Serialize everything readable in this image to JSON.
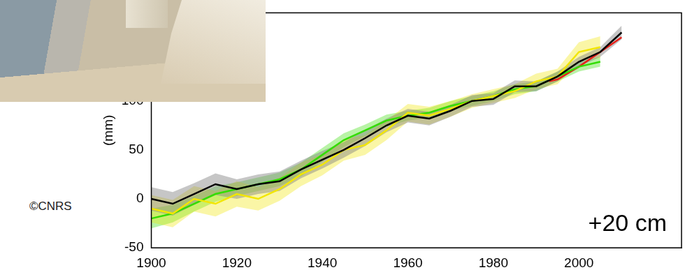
{
  "chart_data": {
    "type": "line",
    "y_label": "(mm)",
    "credit": "©CNRS",
    "annotation": "+20 cm",
    "xlim": [
      1900,
      2024
    ],
    "xticks": [
      1900,
      1920,
      1940,
      1960,
      1980,
      2000
    ],
    "ylim": [
      -50,
      190
    ],
    "yticks": [
      -50,
      0,
      50,
      100
    ],
    "grid": false,
    "series": [
      {
        "color": "#000000",
        "x": [
          1900,
          1905,
          1910,
          1915,
          1920,
          1925,
          1930,
          1935,
          1940,
          1945,
          1950,
          1955,
          1960,
          1965,
          1970,
          1975,
          1980,
          1985,
          1990,
          1995,
          2000,
          2005,
          2010
        ],
        "values": [
          0,
          -5,
          5,
          15,
          10,
          15,
          18,
          30,
          40,
          50,
          62,
          75,
          85,
          82,
          90,
          100,
          102,
          115,
          115,
          125,
          140,
          150,
          170
        ],
        "lower": [
          -12,
          -17,
          -6,
          4,
          0,
          5,
          8,
          21,
          31,
          42,
          54,
          68,
          78,
          75,
          84,
          94,
          96,
          109,
          110,
          120,
          135,
          145,
          163
        ],
        "upper": [
          12,
          7,
          16,
          26,
          20,
          25,
          28,
          39,
          49,
          58,
          70,
          82,
          92,
          89,
          96,
          106,
          108,
          121,
          120,
          130,
          145,
          155,
          177
        ]
      },
      {
        "color": "#f2e600",
        "x": [
          1900,
          1905,
          1910,
          1915,
          1920,
          1925,
          1930,
          1935,
          1940,
          1945,
          1950,
          1955,
          1960,
          1965,
          1970,
          1975,
          1980,
          1985,
          1990,
          1995,
          2000,
          2005
        ],
        "values": [
          -10,
          -15,
          0,
          -5,
          5,
          0,
          10,
          25,
          35,
          50,
          55,
          70,
          88,
          85,
          92,
          100,
          105,
          110,
          120,
          125,
          150,
          155
        ],
        "lower": [
          -24,
          -29,
          -13,
          -18,
          -8,
          -12,
          -2,
          13,
          24,
          39,
          45,
          60,
          79,
          76,
          84,
          93,
          98,
          103,
          112,
          117,
          140,
          144
        ],
        "upper": [
          4,
          -1,
          13,
          8,
          18,
          12,
          22,
          37,
          46,
          61,
          65,
          80,
          97,
          94,
          100,
          107,
          112,
          117,
          128,
          133,
          160,
          166
        ]
      },
      {
        "color": "#33dd00",
        "x": [
          1900,
          1905,
          1910,
          1915,
          1920,
          1925,
          1930,
          1935,
          1940,
          1945,
          1950,
          1955,
          1960,
          1965,
          1970,
          1975,
          1980,
          1985,
          1990,
          1995,
          2000,
          2005
        ],
        "values": [
          -20,
          -15,
          -5,
          5,
          10,
          15,
          20,
          30,
          45,
          60,
          70,
          80,
          85,
          88,
          95,
          100,
          105,
          112,
          115,
          125,
          135,
          140
        ],
        "lower": [
          -30,
          -24,
          -13,
          -3,
          3,
          8,
          13,
          23,
          38,
          53,
          64,
          74,
          80,
          83,
          90,
          95,
          100,
          107,
          110,
          120,
          130,
          135
        ],
        "upper": [
          -10,
          -6,
          3,
          13,
          17,
          22,
          27,
          37,
          52,
          67,
          76,
          86,
          90,
          93,
          100,
          105,
          110,
          117,
          120,
          130,
          140,
          145
        ]
      },
      {
        "color": "#e8201a",
        "x": [
          1993,
          1995,
          2000,
          2005,
          2010
        ],
        "values": [
          120,
          122,
          135,
          150,
          165
        ]
      }
    ]
  }
}
